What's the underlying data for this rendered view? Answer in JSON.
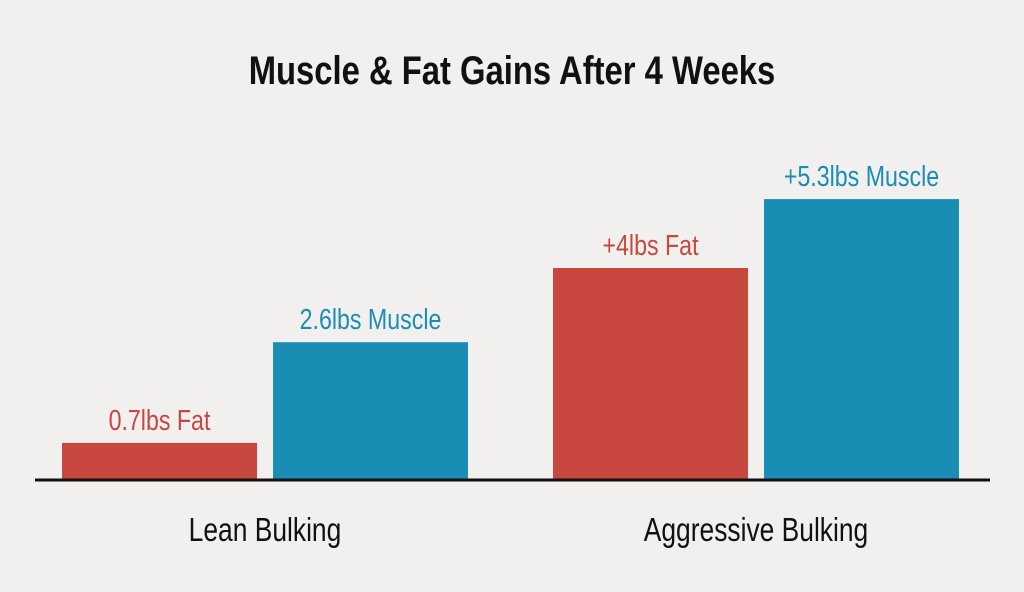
{
  "chart_data": {
    "type": "bar",
    "title": "Muscle & Fat Gains After 4 Weeks",
    "categories": [
      "Lean Bulking",
      "Aggressive Bulking"
    ],
    "series": [
      {
        "key": "fat",
        "values": [
          0.7,
          4
        ],
        "labels": [
          "0.7lbs Fat",
          "+4lbs Fat"
        ],
        "color": "#c8473f"
      },
      {
        "key": "muscle",
        "values": [
          2.6,
          5.3
        ],
        "labels": [
          "2.6lbs Muscle",
          "+5.3lbs Muscle"
        ],
        "color": "#1a8db5"
      }
    ],
    "unit": "lbs",
    "ylim": [
      0,
      6
    ],
    "grid": false,
    "legend": "none",
    "colors": {
      "background": "#f1f0ee",
      "text": "#111111",
      "axis": "#111111"
    }
  }
}
